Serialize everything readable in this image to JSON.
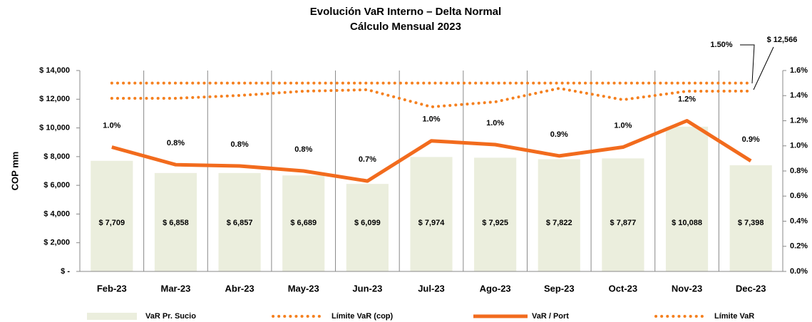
{
  "chart_data": {
    "type": "bar",
    "title": [
      "Evolución VaR Interno – Delta Normal",
      "Cálculo Mensual 2023"
    ],
    "y_label": "COP mm",
    "categories": [
      "Feb-23",
      "Mar-23",
      "Abr-23",
      "May-23",
      "Jun-23",
      "Jul-23",
      "Ago-23",
      "Sep-23",
      "Oct-23",
      "Nov-23",
      "Dec-23"
    ],
    "series": [
      {
        "name": "VaR Pr. Sucio",
        "type": "bar",
        "color": "#ebeedd",
        "axis": "y",
        "values": [
          7709,
          6858,
          6857,
          6689,
          6099,
          7974,
          7925,
          7822,
          7877,
          10088,
          7398
        ],
        "value_labels": [
          "$ 7,709",
          "$ 6,858",
          "$ 6,857",
          "$ 6,689",
          "$ 6,099",
          "$ 7,974",
          "$ 7,925",
          "$ 7,822",
          "$ 7,877",
          "$ 10,088",
          "$ 7,398"
        ]
      },
      {
        "name": "Límite VaR (cop)",
        "type": "line",
        "style": "dotted",
        "color": "#f5801f",
        "axis": "y",
        "values": [
          12064,
          12064,
          12262,
          12560,
          12660,
          11468,
          11815,
          12759,
          11965,
          12560,
          12566
        ]
      },
      {
        "name": "VaR / Port",
        "type": "line",
        "style": "solid",
        "color": "#f26b1d",
        "axis": "y2",
        "values": [
          0.99,
          0.85,
          0.84,
          0.8,
          0.72,
          1.04,
          1.01,
          0.92,
          0.99,
          1.2,
          0.88
        ],
        "value_labels": [
          "1.0%",
          "0.8%",
          "0.8%",
          "0.8%",
          "0.7%",
          "1.0%",
          "1.0%",
          "0.9%",
          "1.0%",
          "1.2%",
          "0.9%"
        ]
      },
      {
        "name": "Límite VaR",
        "type": "line",
        "style": "dotted",
        "color": "#f5801f",
        "axis": "y2",
        "values": [
          1.5,
          1.5,
          1.5,
          1.5,
          1.5,
          1.5,
          1.5,
          1.5,
          1.5,
          1.5,
          1.5
        ]
      }
    ],
    "annotations": [
      "1.50%",
      "$ 12,566"
    ],
    "ylim": [
      0,
      14000
    ],
    "yticks": [
      {
        "value": 0,
        "label": "$ -"
      },
      {
        "value": 2000,
        "label": "$ 2,000"
      },
      {
        "value": 4000,
        "label": "$ 4,000"
      },
      {
        "value": 6000,
        "label": "$ 6,000"
      },
      {
        "value": 8000,
        "label": "$ 8,000"
      },
      {
        "value": 10000,
        "label": "$ 10,000"
      },
      {
        "value": 12000,
        "label": "$ 12,000"
      },
      {
        "value": 14000,
        "label": "$ 14,000"
      }
    ],
    "y2lim": [
      0,
      1.6
    ],
    "y2ticks": [
      {
        "value": 0,
        "label": "0.0%"
      },
      {
        "value": 0.2,
        "label": "0.2%"
      },
      {
        "value": 0.4,
        "label": "0.4%"
      },
      {
        "value": 0.6,
        "label": "0.6%"
      },
      {
        "value": 0.8,
        "label": "0.8%"
      },
      {
        "value": 1.0,
        "label": "1.0%"
      },
      {
        "value": 1.2,
        "label": "1.2%"
      },
      {
        "value": 1.4,
        "label": "1.4%"
      },
      {
        "value": 1.6,
        "label": "1.6%"
      }
    ],
    "grid": false,
    "legend": "bottom"
  }
}
